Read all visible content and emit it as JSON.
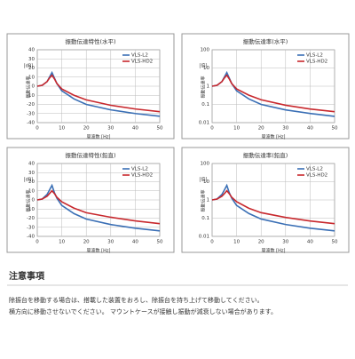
{
  "chart_data": [
    {
      "type": "line",
      "title": "振動伝達特性(水平)",
      "ylabel": "振動伝達率",
      "y_unit": "[dB]",
      "xlabel": "周波数 [Hz]",
      "log_y": false,
      "grid": true,
      "legend": "upper right",
      "x": [
        0,
        2,
        4,
        5,
        6,
        7,
        8,
        10,
        15,
        20,
        30,
        40,
        50
      ],
      "xlim": [
        0,
        50
      ],
      "xticks": [
        0,
        10,
        20,
        30,
        40,
        50
      ],
      "ylim": [
        -40,
        40
      ],
      "yticks": [
        40,
        30,
        20,
        10,
        0,
        -10,
        -20,
        -30,
        -40
      ],
      "series": [
        {
          "name": "VLS-L2",
          "color": "#3a6fb5",
          "values": [
            0,
            1,
            5,
            10,
            15,
            9,
            3,
            -5,
            -14,
            -20,
            -26,
            -30,
            -33
          ]
        },
        {
          "name": "VLS-HD2",
          "color": "#c8282d",
          "values": [
            0,
            1,
            5,
            9,
            12,
            8,
            3,
            -3,
            -10,
            -15,
            -21,
            -25,
            -28
          ]
        }
      ]
    },
    {
      "type": "line",
      "title": "振動伝達率(水平)",
      "ylabel": "振動伝達率",
      "y_unit": "[倍]",
      "xlabel": "周波数 [Hz]",
      "log_y": true,
      "grid": true,
      "legend": "upper right",
      "x": [
        0,
        2,
        4,
        5,
        6,
        7,
        8,
        10,
        15,
        20,
        30,
        40,
        50
      ],
      "xlim": [
        0,
        50
      ],
      "xticks": [
        0,
        10,
        20,
        30,
        40,
        50
      ],
      "ylim": [
        0.01,
        100
      ],
      "yticks": [
        100,
        10,
        1,
        0.1,
        0.01
      ],
      "series": [
        {
          "name": "VLS-L2",
          "color": "#3a6fb5",
          "values": [
            1,
            1.12,
            1.78,
            3.16,
            5.6,
            2.8,
            1.4,
            0.56,
            0.2,
            0.1,
            0.05,
            0.032,
            0.022
          ]
        },
        {
          "name": "VLS-HD2",
          "color": "#c8282d",
          "values": [
            1,
            1.12,
            1.78,
            2.8,
            4,
            2.5,
            1.4,
            0.71,
            0.32,
            0.18,
            0.09,
            0.056,
            0.04
          ]
        }
      ]
    },
    {
      "type": "line",
      "title": "振動伝達特性(鉛直)",
      "ylabel": "振動伝達率",
      "y_unit": "[dB]",
      "xlabel": "周波数 [Hz]",
      "log_y": false,
      "grid": true,
      "legend": "upper right",
      "x": [
        0,
        2,
        4,
        5,
        6,
        7,
        8,
        10,
        15,
        20,
        30,
        40,
        50
      ],
      "xlim": [
        0,
        50
      ],
      "xticks": [
        0,
        10,
        20,
        30,
        40,
        50
      ],
      "ylim": [
        -40,
        40
      ],
      "yticks": [
        40,
        30,
        20,
        10,
        0,
        -10,
        -20,
        -30,
        -40
      ],
      "series": [
        {
          "name": "VLS-L2",
          "color": "#3a6fb5",
          "values": [
            0,
            1,
            6,
            11,
            16,
            8,
            2,
            -6,
            -15,
            -21,
            -27,
            -31,
            -34
          ]
        },
        {
          "name": "VLS-HD2",
          "color": "#c8282d",
          "values": [
            0,
            1,
            4,
            7,
            10,
            7,
            3,
            -2,
            -9,
            -14,
            -19,
            -23,
            -26
          ]
        }
      ]
    },
    {
      "type": "line",
      "title": "振動伝達率(鉛直)",
      "ylabel": "振動伝達率",
      "y_unit": "[倍]",
      "xlabel": "周波数 [Hz]",
      "log_y": true,
      "grid": true,
      "legend": "upper right",
      "x": [
        0,
        2,
        4,
        5,
        6,
        7,
        8,
        10,
        15,
        20,
        30,
        40,
        50
      ],
      "xlim": [
        0,
        50
      ],
      "xticks": [
        0,
        10,
        20,
        30,
        40,
        50
      ],
      "ylim": [
        0.01,
        100
      ],
      "yticks": [
        100,
        10,
        1,
        0.1,
        0.01
      ],
      "series": [
        {
          "name": "VLS-L2",
          "color": "#3a6fb5",
          "values": [
            1,
            1.12,
            2,
            3.5,
            6.3,
            2.5,
            1.26,
            0.5,
            0.18,
            0.09,
            0.045,
            0.028,
            0.02
          ]
        },
        {
          "name": "VLS-HD2",
          "color": "#c8282d",
          "values": [
            1,
            1.12,
            1.6,
            2.2,
            3.2,
            2.2,
            1.4,
            0.8,
            0.35,
            0.2,
            0.11,
            0.07,
            0.05
          ]
        }
      ]
    }
  ],
  "notes": {
    "title": "注意事項",
    "lines": [
      "除振台を移動する場合は、搭載した装置をおろし、除振台を持ち上げて移動してください。",
      "横方向に移動させないでください。 マウントケースが接触し振動が減衰しない場合があります。"
    ]
  }
}
